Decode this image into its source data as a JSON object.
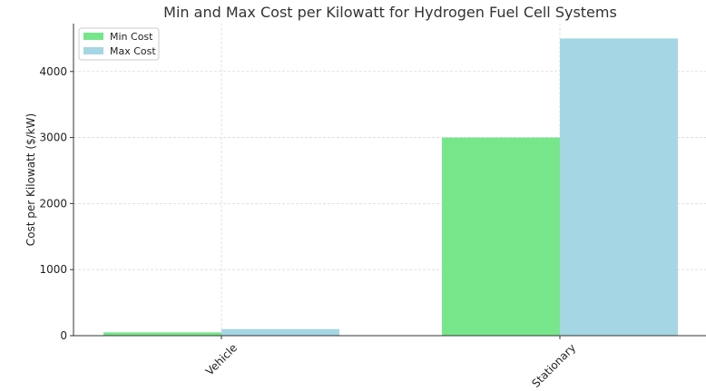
{
  "chart_data": {
    "type": "bar",
    "title": "Min and Max Cost per Kilowatt for Hydrogen Fuel Cell Systems",
    "xlabel": "",
    "ylabel": "Cost per Kilowatt ($/kW)",
    "categories": [
      "Vehicle",
      "Stationary"
    ],
    "series": [
      {
        "name": "Min Cost",
        "values": [
          50,
          3000
        ],
        "color": "#77e68b"
      },
      {
        "name": "Max Cost",
        "values": [
          100,
          4500
        ],
        "color": "#a5d6e3"
      }
    ],
    "ylim": [
      0,
      4725
    ],
    "yticks": [
      0,
      1000,
      2000,
      3000,
      4000
    ],
    "grid": true,
    "legend_position": "top-left"
  }
}
